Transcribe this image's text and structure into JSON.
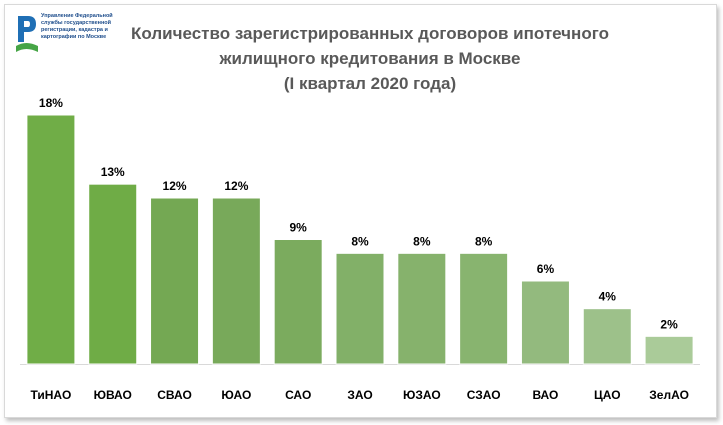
{
  "logo": {
    "lines": [
      "Управление Федеральной",
      "службы государственной",
      "регистрации, кадастра и",
      "картографии по Москве"
    ]
  },
  "title_lines": [
    "Количество зарегистрированных договоров ипотечного",
    "жилищного кредитования в Москве",
    "(I квартал 2020 года)"
  ],
  "chart_data": {
    "type": "bar",
    "title": "Количество зарегистрированных договоров ипотечного жилищного кредитования в Москве (I квартал 2020 года)",
    "categories": [
      "ТиНАО",
      "ЮВАО",
      "СВАО",
      "ЮАО",
      "САО",
      "ЗАО",
      "ЮЗАО",
      "СЗАО",
      "ВАО",
      "ЦАО",
      "ЗелАО"
    ],
    "values": [
      18,
      13,
      12,
      12,
      9,
      8,
      8,
      8,
      6,
      4,
      2
    ],
    "data_labels": [
      "18%",
      "13%",
      "12%",
      "12%",
      "9%",
      "8%",
      "8%",
      "8%",
      "6%",
      "4%",
      "2%"
    ],
    "unit": "%",
    "xlabel": "",
    "ylabel": "",
    "ylim": [
      0,
      18
    ],
    "grid": false,
    "legend": "none",
    "colors": [
      "#70ad47",
      "#6fac46",
      "#74a853",
      "#78a95a",
      "#7bab5e",
      "#82b068",
      "#86b26c",
      "#88b46f",
      "#93ba7e",
      "#9dc18a",
      "#aacb99"
    ]
  }
}
